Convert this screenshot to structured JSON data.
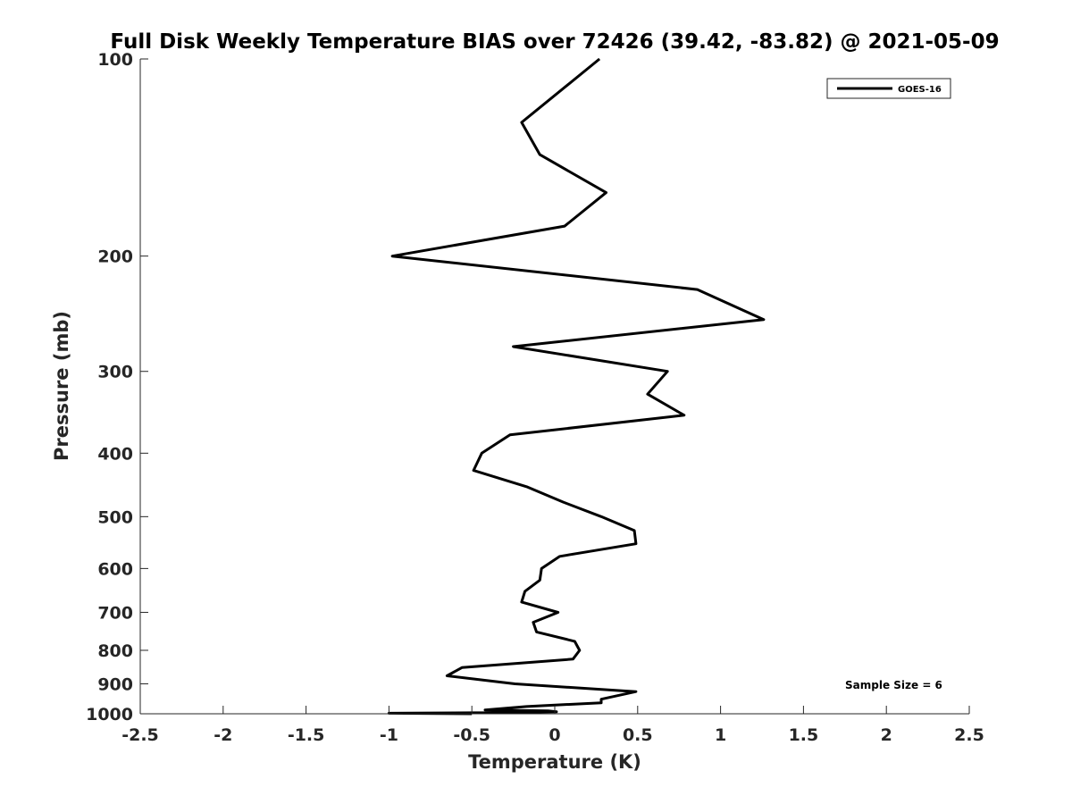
{
  "chart_data": {
    "type": "line",
    "title": "Full Disk Weekly Temperature BIAS over 72426 (39.42, -83.82) @ 2021-05-09",
    "xlabel": "Temperature (K)",
    "ylabel": "Pressure (mb)",
    "xlim": [
      -2.5,
      2.5
    ],
    "ylim": [
      1000,
      100
    ],
    "y_scale": "log",
    "x_ticks": [
      -2.5,
      -2,
      -1.5,
      -1,
      -0.5,
      0,
      0.5,
      1,
      1.5,
      2,
      2.5
    ],
    "x_tick_labels": [
      "-2.5",
      "-2",
      "-1.5",
      "-1",
      "-0.5",
      "0",
      "0.5",
      "1",
      "1.5",
      "2",
      "2.5"
    ],
    "y_ticks": [
      100,
      200,
      300,
      400,
      500,
      600,
      700,
      800,
      900,
      1000
    ],
    "y_tick_labels": [
      "100",
      "200",
      "300",
      "400",
      "500",
      "600",
      "700",
      "800",
      "900",
      "1000"
    ],
    "grid": false,
    "legend_position": "top-right",
    "series": [
      {
        "name": "GOES-16",
        "color": "#000000",
        "points": [
          {
            "x": 0.27,
            "p": 100
          },
          {
            "x": -0.2,
            "p": 125
          },
          {
            "x": -0.09,
            "p": 140
          },
          {
            "x": 0.31,
            "p": 160
          },
          {
            "x": 0.06,
            "p": 180
          },
          {
            "x": -0.98,
            "p": 200
          },
          {
            "x": 0.86,
            "p": 225
          },
          {
            "x": 1.26,
            "p": 250
          },
          {
            "x": -0.25,
            "p": 275
          },
          {
            "x": 0.68,
            "p": 300
          },
          {
            "x": 0.56,
            "p": 325
          },
          {
            "x": 0.78,
            "p": 350
          },
          {
            "x": -0.27,
            "p": 375
          },
          {
            "x": -0.44,
            "p": 400
          },
          {
            "x": -0.49,
            "p": 425
          },
          {
            "x": -0.17,
            "p": 450
          },
          {
            "x": 0.05,
            "p": 475
          },
          {
            "x": 0.28,
            "p": 500
          },
          {
            "x": 0.48,
            "p": 525
          },
          {
            "x": 0.49,
            "p": 550
          },
          {
            "x": 0.03,
            "p": 575
          },
          {
            "x": -0.08,
            "p": 600
          },
          {
            "x": -0.09,
            "p": 625
          },
          {
            "x": -0.18,
            "p": 650
          },
          {
            "x": -0.2,
            "p": 675
          },
          {
            "x": 0.02,
            "p": 700
          },
          {
            "x": -0.13,
            "p": 725
          },
          {
            "x": -0.11,
            "p": 750
          },
          {
            "x": 0.12,
            "p": 775
          },
          {
            "x": 0.15,
            "p": 800
          },
          {
            "x": 0.11,
            "p": 825
          },
          {
            "x": -0.56,
            "p": 850
          },
          {
            "x": -0.65,
            "p": 875
          },
          {
            "x": -0.24,
            "p": 900
          },
          {
            "x": 0.49,
            "p": 925
          },
          {
            "x": 0.28,
            "p": 950
          },
          {
            "x": 0.28,
            "p": 962
          },
          {
            "x": -0.17,
            "p": 975
          },
          {
            "x": -0.42,
            "p": 987
          },
          {
            "x": -0.04,
            "p": 990
          },
          {
            "x": 0.01,
            "p": 993
          },
          {
            "x": -0.39,
            "p": 996
          },
          {
            "x": -1.0,
            "p": 998
          },
          {
            "x": -0.5,
            "p": 1000
          }
        ]
      }
    ],
    "annotation": "Sample Size = 6"
  }
}
